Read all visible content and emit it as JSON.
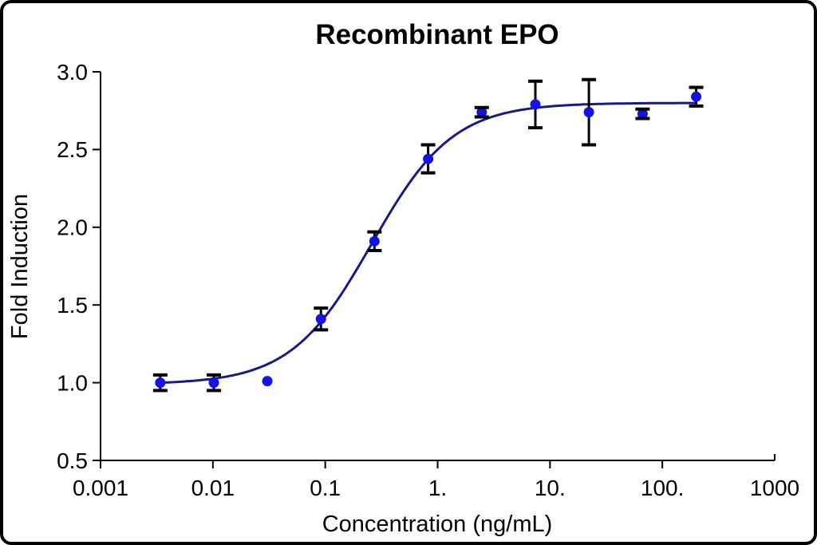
{
  "chart_data": {
    "type": "scatter",
    "title": "Recombinant EPO",
    "xlabel": "Concentration (ng/mL)",
    "ylabel": "Fold Induction",
    "x_scale": "log",
    "xlim": [
      0.001,
      1000
    ],
    "ylim": [
      0.5,
      3.0
    ],
    "grid": false,
    "legend": "none",
    "x_ticks": [
      {
        "value": 0.001,
        "label": "0.001"
      },
      {
        "value": 0.01,
        "label": "0.01"
      },
      {
        "value": 0.1,
        "label": "0.1"
      },
      {
        "value": 1,
        "label": "1."
      },
      {
        "value": 10,
        "label": "10."
      },
      {
        "value": 100,
        "label": "100."
      },
      {
        "value": 1000,
        "label": "1000"
      }
    ],
    "y_ticks": [
      {
        "value": 0.5,
        "label": "0.5"
      },
      {
        "value": 1.0,
        "label": "1.0"
      },
      {
        "value": 1.5,
        "label": "1.5"
      },
      {
        "value": 2.0,
        "label": "2.0"
      },
      {
        "value": 2.5,
        "label": "2.5"
      },
      {
        "value": 3.0,
        "label": "3.0"
      }
    ],
    "points": [
      {
        "x": 0.0034,
        "y": 1.0,
        "err": 0.05
      },
      {
        "x": 0.0102,
        "y": 1.0,
        "err": 0.05
      },
      {
        "x": 0.0305,
        "y": 1.01,
        "err": 0
      },
      {
        "x": 0.0915,
        "y": 1.41,
        "err": 0.07
      },
      {
        "x": 0.274,
        "y": 1.91,
        "err": 0.06
      },
      {
        "x": 0.823,
        "y": 2.44,
        "err": 0.09
      },
      {
        "x": 2.47,
        "y": 2.74,
        "err": 0.03
      },
      {
        "x": 7.41,
        "y": 2.79,
        "err": 0.15
      },
      {
        "x": 22.2,
        "y": 2.74,
        "err": 0.21
      },
      {
        "x": 66.7,
        "y": 2.73,
        "err": 0.03
      },
      {
        "x": 200,
        "y": 2.84,
        "err": 0.06
      }
    ],
    "fit_curve": {
      "model": "4PL",
      "bottom": 0.99,
      "top": 2.8,
      "ec50": 0.26,
      "hill": 1.2,
      "x_start": 0.0034,
      "x_end": 200
    },
    "colors": {
      "point": "#1313e8",
      "curve": "#191985",
      "error_bar": "#000000",
      "axis": "#000000",
      "text": "#000000",
      "background": "#ffffff"
    }
  }
}
